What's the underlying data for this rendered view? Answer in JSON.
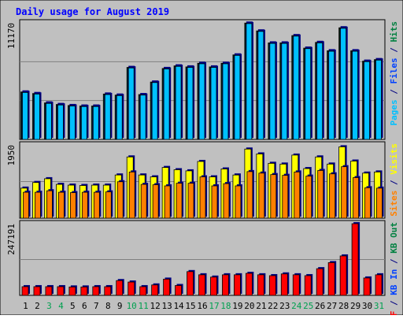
{
  "chart_data": {
    "type": "bar",
    "title": "Daily usage for August 2019",
    "categories": [
      "1",
      "2",
      "3",
      "4",
      "5",
      "6",
      "7",
      "8",
      "9",
      "10",
      "11",
      "12",
      "13",
      "14",
      "15",
      "16",
      "17",
      "18",
      "19",
      "20",
      "21",
      "22",
      "23",
      "24",
      "25",
      "26",
      "27",
      "28",
      "29",
      "30",
      "31"
    ],
    "weekend_days": [
      "3",
      "4",
      "10",
      "11",
      "17",
      "18",
      "24",
      "25",
      "31"
    ],
    "panels": [
      {
        "id": "hits_files_pages",
        "max_label": "11170",
        "ylim": [
          0,
          11170
        ],
        "axis_label": [
          {
            "text": "Pages",
            "color": "#00c0ff"
          },
          {
            "text": " / ",
            "color": "#000080"
          },
          {
            "text": "Files",
            "color": "#0040ff"
          },
          {
            "text": " / ",
            "color": "#000080"
          },
          {
            "text": "Hits",
            "color": "#008040"
          }
        ],
        "series": [
          {
            "name": "Hits",
            "color": "#008040",
            "values": [
              4550,
              4400,
              3500,
              3350,
              3250,
              3200,
              3200,
              4350,
              4250,
              6900,
              4300,
              5500,
              6800,
              7050,
              6950,
              7300,
              6950,
              7300,
              8100,
              11150,
              10400,
              9250,
              9250,
              9950,
              8750,
              9300,
              8500,
              10700,
              8500,
              7500,
              7650
            ]
          },
          {
            "name": "Files",
            "color": "#0040ff",
            "values": [
              4500,
              4350,
              3450,
              3300,
              3200,
              3150,
              3150,
              4300,
              4200,
              6850,
              4250,
              5450,
              6750,
              7000,
              6900,
              7250,
              6900,
              7250,
              8050,
              11100,
              10350,
              9200,
              9200,
              9900,
              8700,
              9250,
              8450,
              10650,
              8450,
              7450,
              7600
            ]
          },
          {
            "name": "Pages",
            "color": "#00c0ff",
            "values": [
              4500,
              4350,
              3450,
              3300,
              3200,
              3150,
              3150,
              4300,
              4200,
              6850,
              4250,
              5450,
              6750,
              7000,
              6900,
              7250,
              6900,
              7250,
              8050,
              11100,
              10350,
              9200,
              9200,
              9900,
              8700,
              9250,
              8450,
              10650,
              8450,
              7450,
              7600
            ]
          }
        ]
      },
      {
        "id": "visits_sites",
        "max_label": "1950",
        "ylim": [
          0,
          1950
        ],
        "axis_label": [
          {
            "text": "Sites",
            "color": "#ff8000"
          },
          {
            "text": " / ",
            "color": "#000080"
          },
          {
            "text": "Visits",
            "color": "#ffff00"
          }
        ],
        "series": [
          {
            "name": "Visits",
            "color": "#ffff00",
            "values": [
              800,
              950,
              1050,
              900,
              880,
              870,
              880,
              880,
              1150,
              1630,
              1150,
              1100,
              1350,
              1290,
              1260,
              1510,
              1100,
              1310,
              1150,
              1840,
              1710,
              1460,
              1440,
              1680,
              1320,
              1630,
              1440,
              1900,
              1520,
              1200,
              1230
            ]
          },
          {
            "name": "Sites",
            "color": "#ff8000",
            "values": [
              690,
              690,
              730,
              690,
              680,
              690,
              690,
              700,
              970,
              1230,
              900,
              890,
              860,
              930,
              930,
              1100,
              860,
              920,
              860,
              1240,
              1200,
              1160,
              1140,
              1230,
              1120,
              1270,
              1180,
              1370,
              1080,
              810,
              800
            ]
          }
        ]
      },
      {
        "id": "kb_in_out",
        "max_label": "247191",
        "ylim": [
          0,
          247191
        ],
        "axis_label": [
          {
            "text": "KB F",
            "color": "#ff0000"
          },
          {
            "text": " / ",
            "color": "#000080"
          },
          {
            "text": "KB In",
            "color": "#0040ff"
          },
          {
            "text": " / ",
            "color": "#000080"
          },
          {
            "text": "KB Out",
            "color": "#008040"
          }
        ],
        "series": [
          {
            "name": "KB F",
            "color": "#ff0000",
            "values": [
              30000,
              30000,
              30000,
              30000,
              29000,
              29000,
              30000,
              30000,
              51000,
              46000,
              30000,
              36000,
              56000,
              34000,
              82000,
              71000,
              63000,
              71000,
              71000,
              76000,
              71000,
              68000,
              74000,
              71000,
              68000,
              92000,
              113000,
              136000,
              247191,
              60000,
              71000
            ]
          }
        ]
      }
    ]
  }
}
